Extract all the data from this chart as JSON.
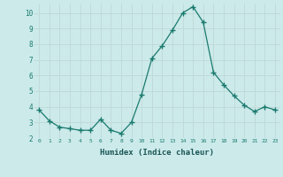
{
  "x": [
    0,
    1,
    2,
    3,
    4,
    5,
    6,
    7,
    8,
    9,
    10,
    11,
    12,
    13,
    14,
    15,
    16,
    17,
    18,
    19,
    20,
    21,
    22,
    23
  ],
  "y": [
    3.8,
    3.1,
    2.7,
    2.6,
    2.5,
    2.5,
    3.2,
    2.5,
    2.3,
    3.0,
    4.8,
    7.1,
    7.9,
    8.9,
    10.0,
    10.4,
    9.4,
    6.2,
    5.4,
    4.7,
    4.1,
    3.7,
    4.0,
    3.8
  ],
  "xlabel": "Humidex (Indice chaleur)",
  "ylim": [
    2,
    10.6
  ],
  "xlim": [
    -0.5,
    23.5
  ],
  "yticks": [
    2,
    3,
    4,
    5,
    6,
    7,
    8,
    9,
    10
  ],
  "xticks": [
    0,
    1,
    2,
    3,
    4,
    5,
    6,
    7,
    8,
    9,
    10,
    11,
    12,
    13,
    14,
    15,
    16,
    17,
    18,
    19,
    20,
    21,
    22,
    23
  ],
  "line_color": "#1a7a6e",
  "marker": "+",
  "marker_size": 4,
  "bg_color": "#cceaea",
  "grid_color": "#c0d8d8",
  "tick_color": "#1a7a6e",
  "xlabel_color": "#1a5555"
}
